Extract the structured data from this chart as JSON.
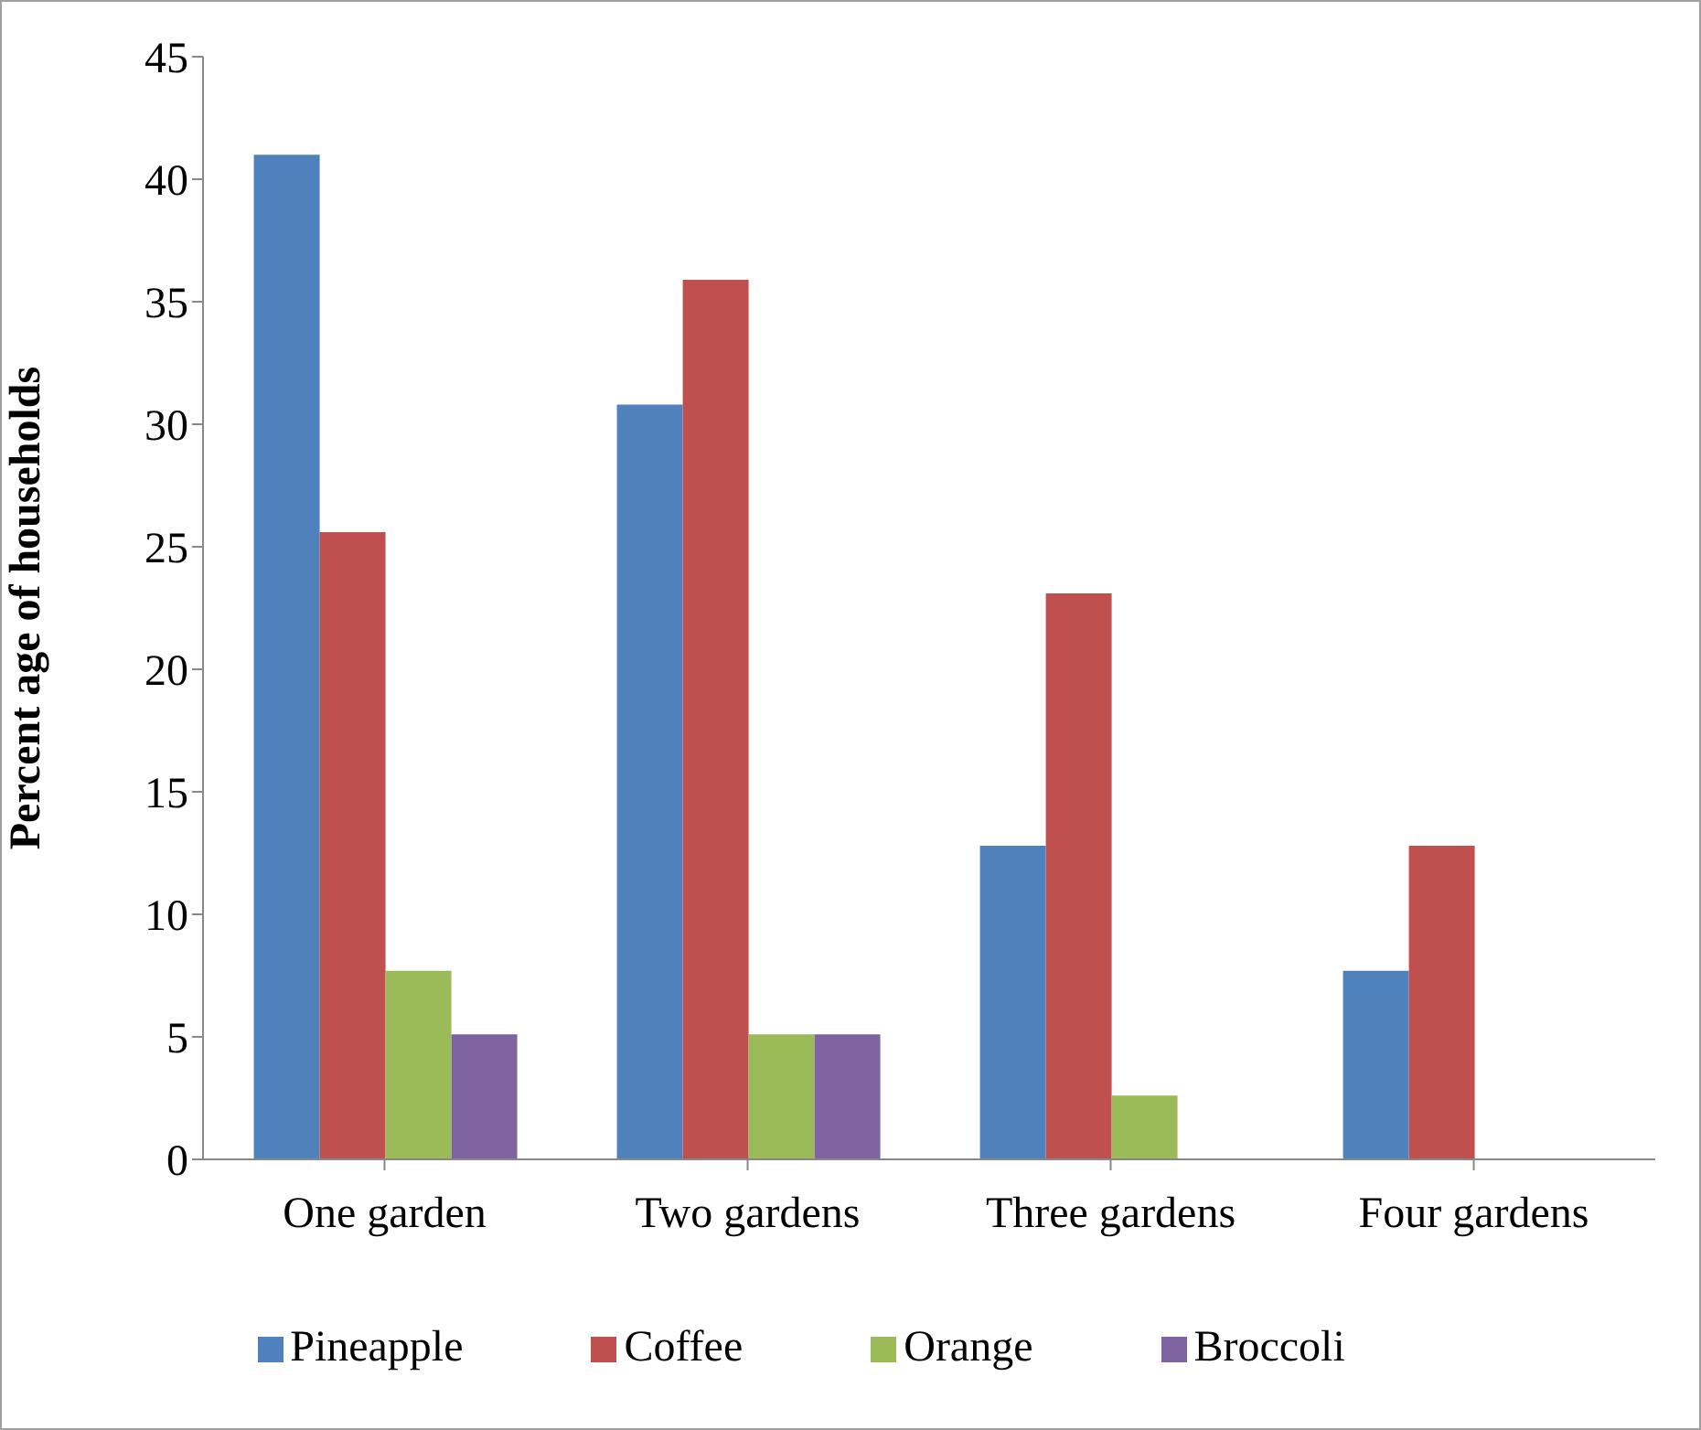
{
  "chart_data": {
    "type": "bar",
    "ylabel": "Percent age of households",
    "categories": [
      "One garden",
      "Two gardens",
      "Three gardens",
      "Four gardens"
    ],
    "series": [
      {
        "name": "Pineapple",
        "color": "#4f81bd",
        "values": [
          41.0,
          30.8,
          12.8,
          7.7
        ]
      },
      {
        "name": "Coffee",
        "color": "#c0504d",
        "values": [
          25.6,
          35.9,
          23.1,
          12.8
        ]
      },
      {
        "name": "Orange",
        "color": "#9bbb59",
        "values": [
          7.7,
          5.1,
          2.6,
          0
        ]
      },
      {
        "name": "Broccoli",
        "color": "#8064a2",
        "values": [
          5.1,
          5.1,
          0,
          0
        ]
      }
    ],
    "ylim": [
      0,
      45
    ],
    "yticks": [
      0,
      5,
      10,
      15,
      20,
      25,
      30,
      35,
      40,
      45
    ],
    "grid": false,
    "legend": "bottom"
  }
}
